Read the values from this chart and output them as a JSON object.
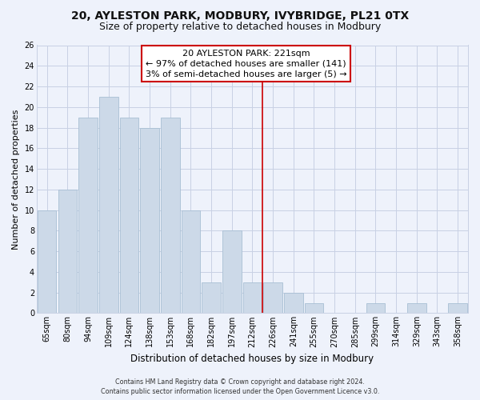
{
  "title": "20, AYLESTON PARK, MODBURY, IVYBRIDGE, PL21 0TX",
  "subtitle": "Size of property relative to detached houses in Modbury",
  "xlabel": "Distribution of detached houses by size in Modbury",
  "ylabel": "Number of detached properties",
  "bar_labels": [
    "65sqm",
    "80sqm",
    "94sqm",
    "109sqm",
    "124sqm",
    "138sqm",
    "153sqm",
    "168sqm",
    "182sqm",
    "197sqm",
    "212sqm",
    "226sqm",
    "241sqm",
    "255sqm",
    "270sqm",
    "285sqm",
    "299sqm",
    "314sqm",
    "329sqm",
    "343sqm",
    "358sqm"
  ],
  "bar_values": [
    10,
    12,
    19,
    21,
    19,
    18,
    19,
    10,
    3,
    8,
    3,
    3,
    2,
    1,
    0,
    0,
    1,
    0,
    1,
    0,
    1
  ],
  "bar_color": "#ccd9e8",
  "bar_edge_color": "#a8bfd4",
  "reference_line_x": 10.5,
  "annotation_title": "20 AYLESTON PARK: 221sqm",
  "annotation_line1": "← 97% of detached houses are smaller (141)",
  "annotation_line2": "3% of semi-detached houses are larger (5) →",
  "ylim": [
    0,
    26
  ],
  "yticks": [
    0,
    2,
    4,
    6,
    8,
    10,
    12,
    14,
    16,
    18,
    20,
    22,
    24,
    26
  ],
  "footer_line1": "Contains HM Land Registry data © Crown copyright and database right 2024.",
  "footer_line2": "Contains public sector information licensed under the Open Government Licence v3.0.",
  "bg_color": "#eef2fb",
  "grid_color": "#c8d0e4",
  "annotation_box_color": "#ffffff",
  "annotation_box_edge": "#cc0000",
  "ref_line_color": "#cc0000",
  "title_fontsize": 10,
  "subtitle_fontsize": 9,
  "tick_fontsize": 7,
  "ylabel_fontsize": 8,
  "xlabel_fontsize": 8.5,
  "footer_fontsize": 5.8,
  "annotation_fontsize": 8
}
